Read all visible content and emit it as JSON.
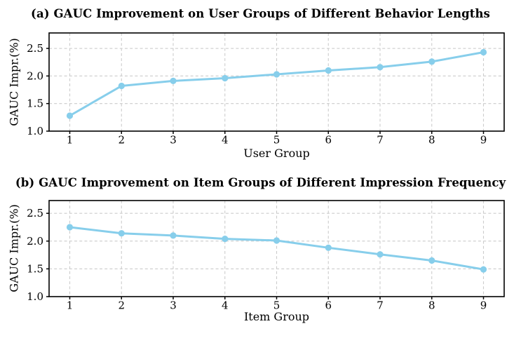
{
  "colors": {
    "line": "#87CEEB",
    "marker": "#87CEEB",
    "grid": "#cccccc",
    "spine": "#000000",
    "text": "#000000",
    "background": "#ffffff"
  },
  "chart_data": [
    {
      "id": "a",
      "type": "line",
      "title": "(a) GAUC Improvement on User Groups of Different Behavior Lengths",
      "xlabel": "User Group",
      "ylabel": "GAUC Impr.(%)",
      "x": [
        1,
        2,
        3,
        4,
        5,
        6,
        7,
        8,
        9
      ],
      "values": [
        1.28,
        1.82,
        1.91,
        1.96,
        2.03,
        2.1,
        2.16,
        2.26,
        2.43
      ],
      "x_ticks": [
        "1",
        "2",
        "3",
        "4",
        "5",
        "6",
        "7",
        "8",
        "9"
      ],
      "y_ticks": [
        "1.0",
        "1.5",
        "2.0",
        "2.5"
      ],
      "xlim": [
        0.6,
        9.4
      ],
      "ylim": [
        1.0,
        2.78
      ],
      "grid": true,
      "legend": null,
      "marker": "circle"
    },
    {
      "id": "b",
      "type": "line",
      "title": "(b) GAUC Improvement on Item Groups of Different Impression Frequency",
      "xlabel": "Item Group",
      "ylabel": "GAUC Impr.(%)",
      "x": [
        1,
        2,
        3,
        4,
        5,
        6,
        7,
        8,
        9
      ],
      "values": [
        2.25,
        2.14,
        2.1,
        2.04,
        2.01,
        1.88,
        1.76,
        1.65,
        1.49
      ],
      "x_ticks": [
        "1",
        "2",
        "3",
        "4",
        "5",
        "6",
        "7",
        "8",
        "9"
      ],
      "y_ticks": [
        "1.0",
        "1.5",
        "2.0",
        "2.5"
      ],
      "xlim": [
        0.6,
        9.4
      ],
      "ylim": [
        1.0,
        2.73
      ],
      "grid": true,
      "legend": null,
      "marker": "circle"
    }
  ]
}
